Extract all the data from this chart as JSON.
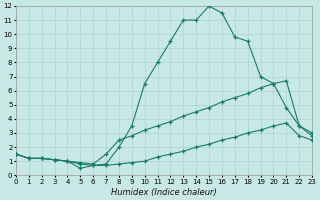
{
  "xlabel": "Humidex (Indice chaleur)",
  "bg_color": "#c8e8e6",
  "grid_color": "#aad4d0",
  "line_color": "#1a7a6a",
  "xlim": [
    0,
    23
  ],
  "ylim": [
    0,
    12
  ],
  "xticks": [
    0,
    1,
    2,
    3,
    4,
    5,
    6,
    7,
    8,
    9,
    10,
    11,
    12,
    13,
    14,
    15,
    16,
    17,
    18,
    19,
    20,
    21,
    22,
    23
  ],
  "yticks": [
    0,
    1,
    2,
    3,
    4,
    5,
    6,
    7,
    8,
    9,
    10,
    11,
    12
  ],
  "line_peak_x": [
    0,
    1,
    2,
    3,
    4,
    5,
    6,
    7,
    8,
    9,
    10,
    11,
    12,
    13,
    14,
    15,
    16,
    17,
    18,
    19,
    20,
    21,
    22,
    23
  ],
  "line_peak_y": [
    1.5,
    1.2,
    1.2,
    1.1,
    1.0,
    0.5,
    0.7,
    0.8,
    2.0,
    3.5,
    6.5,
    8.0,
    9.5,
    11.0,
    11.0,
    12.0,
    11.5,
    9.8,
    9.5,
    7.0,
    6.5,
    4.8,
    3.5,
    2.8
  ],
  "line_upper_x": [
    0,
    1,
    2,
    3,
    4,
    5,
    6,
    7,
    8,
    9,
    10,
    11,
    12,
    13,
    14,
    15,
    16,
    17,
    18,
    19,
    20,
    21,
    22,
    23
  ],
  "line_upper_y": [
    1.5,
    1.2,
    1.2,
    1.1,
    1.0,
    0.9,
    0.8,
    1.5,
    2.5,
    2.8,
    3.2,
    3.5,
    3.8,
    4.2,
    4.5,
    4.8,
    5.2,
    5.5,
    5.8,
    6.2,
    6.5,
    6.7,
    3.5,
    3.0
  ],
  "line_lower_x": [
    0,
    1,
    2,
    3,
    4,
    5,
    6,
    7,
    8,
    9,
    10,
    11,
    12,
    13,
    14,
    15,
    16,
    17,
    18,
    19,
    20,
    21,
    22,
    23
  ],
  "line_lower_y": [
    1.5,
    1.2,
    1.2,
    1.1,
    1.0,
    0.8,
    0.7,
    0.7,
    0.8,
    0.9,
    1.0,
    1.3,
    1.5,
    1.7,
    2.0,
    2.2,
    2.5,
    2.7,
    3.0,
    3.2,
    3.5,
    3.7,
    2.8,
    2.5
  ]
}
